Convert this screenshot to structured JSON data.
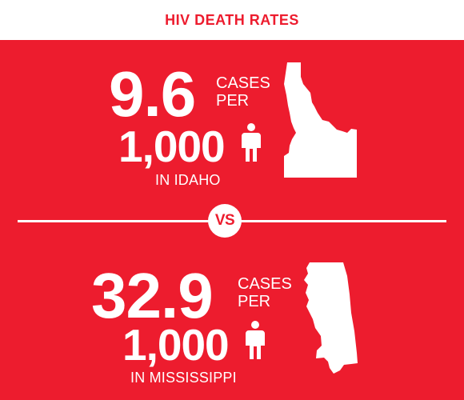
{
  "header": {
    "title": "HIV DEATH RATES"
  },
  "stats": [
    {
      "rate": "9.6",
      "cases_line1": "CASES",
      "cases_line2": "PER",
      "per_value": "1,000",
      "location": "IN IDAHO",
      "person_icon": "person-icon",
      "map_icon": "idaho-map-icon"
    },
    {
      "rate": "32.9",
      "cases_line1": "CASES",
      "cases_line2": "PER",
      "per_value": "1,000",
      "location": "IN MISSISSIPPI",
      "person_icon": "person-icon",
      "map_icon": "mississippi-map-icon"
    }
  ],
  "divider": {
    "vs_label": "VS"
  },
  "colors": {
    "brand_red": "#ed1c2e",
    "white": "#ffffff"
  }
}
